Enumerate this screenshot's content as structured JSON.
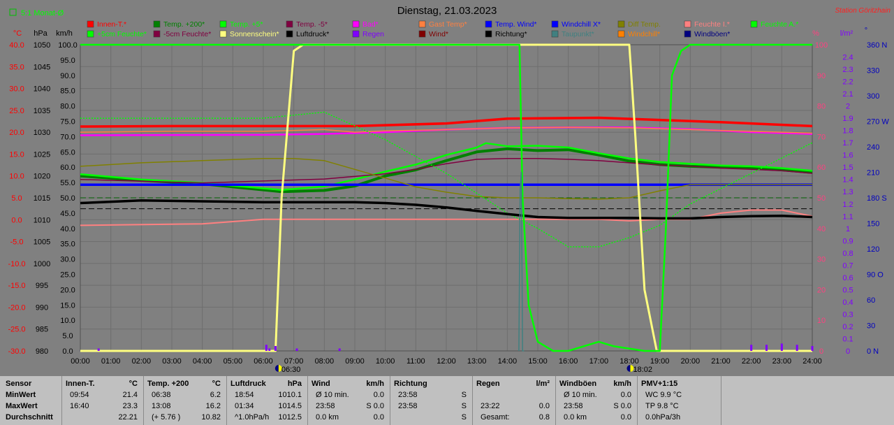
{
  "header": {
    "title": "Dienstag, 21.03.2023",
    "station": "Station Göritzhain",
    "toggle": "5:1 Monat-Ø"
  },
  "axes": {
    "temp_unit": "°C",
    "pressure_unit": "hPa",
    "wind_unit": "km/h",
    "humidity_unit": "%",
    "rain_unit": "l/m²",
    "direction_unit": "°",
    "temp_ticks": [
      "40.0",
      "35.0",
      "30.0",
      "25.0",
      "20.0",
      "15.0",
      "10.0",
      "5.0",
      "0.0",
      "-5.0",
      "-10.0",
      "-15.0",
      "-20.0",
      "-25.0",
      "-30.0"
    ],
    "pressure_ticks": [
      "1050",
      "1045",
      "1040",
      "1035",
      "1030",
      "1025",
      "1020",
      "1015",
      "1010",
      "1005",
      "1000",
      "995",
      "990",
      "985",
      "980"
    ],
    "wind_ticks": [
      "100.0",
      "95.0",
      "90.0",
      "85.0",
      "80.0",
      "75.0",
      "70.0",
      "65.0",
      "60.0",
      "55.0",
      "50.0",
      "45.0",
      "40.0",
      "35.0",
      "30.0",
      "25.0",
      "20.0",
      "15.0",
      "10.0",
      "5.0",
      "0.0"
    ],
    "humidity_ticks": [
      "100",
      "90",
      "80",
      "70",
      "60",
      "50",
      "40",
      "30",
      "20",
      "10",
      "0"
    ],
    "rain_ticks": [
      "2.4",
      "2.3",
      "2.2",
      "2.1",
      "2",
      "1.9",
      "1.8",
      "1.7",
      "1.6",
      "1.5",
      "1.4",
      "1.3",
      "1.2",
      "1.1",
      "1",
      "0.9",
      "0.8",
      "0.7",
      "0.6",
      "0.5",
      "0.4",
      "0.3",
      "0.2",
      "0.1",
      "0"
    ],
    "direction_ticks": [
      "360 N",
      "330",
      "300",
      "270 W",
      "240",
      "210",
      "180 S",
      "150",
      "120",
      "90 O",
      "60",
      "30",
      "0 N"
    ],
    "time_ticks": [
      "00:00",
      "01:00",
      "02:00",
      "03:00",
      "04:00",
      "05:00",
      "06:00",
      "07:00",
      "08:00",
      "09:00",
      "10:00",
      "11:00",
      "12:00",
      "13:00",
      "14:00",
      "15:00",
      "16:00",
      "17:00",
      "18:00",
      "19:00",
      "20:00",
      "21:00",
      "22:00",
      "23:00",
      "24:00"
    ],
    "sunrise": "06:30",
    "sunset": "18:02"
  },
  "legend": [
    {
      "label": "Innen-T.*",
      "color": "#ff0000"
    },
    {
      "label": "Temp. +200*",
      "color": "#008000"
    },
    {
      "label": "Temp. +5*",
      "color": "#00ff00"
    },
    {
      "label": "Temp. -5*",
      "color": "#800040"
    },
    {
      "label": "Bad*",
      "color": "#ff00ff"
    },
    {
      "label": "Gast Temp*",
      "color": "#ff8040"
    },
    {
      "label": "Temp. Wind*",
      "color": "#0000ff"
    },
    {
      "label": "Windchill X*",
      "color": "#0000ff"
    },
    {
      "label": "Diff Temp.",
      "color": "#808000"
    },
    {
      "label": "Feuchte I.*",
      "color": "#ff8080"
    },
    {
      "label": "Feuchte A.*",
      "color": "#00ff00"
    },
    {
      "label": "+5cm Feuchte*",
      "color": "#00ff00"
    },
    {
      "label": "-5cm Feuchte*",
      "color": "#800040"
    },
    {
      "label": "Sonnenschein*",
      "color": "#ffff80"
    },
    {
      "label": "Luftdruck*",
      "color": "#000000"
    },
    {
      "label": "Regen",
      "color": "#8000ff"
    },
    {
      "label": "Wind*",
      "color": "#800000"
    },
    {
      "label": "Richtung*",
      "color": "#000000"
    },
    {
      "label": "Taupunkt*",
      "color": "#408080"
    },
    {
      "label": "Windchill*",
      "color": "#ff8000"
    },
    {
      "label": "Windböen*",
      "color": "#000080"
    }
  ],
  "chart_data": {
    "type": "line",
    "title": "Dienstag, 21.03.2023",
    "xlabel": "",
    "ylabel": "°C",
    "xlim": [
      0,
      24
    ],
    "ylim": [
      -30,
      40
    ],
    "grid": true,
    "legend_position": "top",
    "series": [
      {
        "name": "Innen-T.*",
        "color": "#ff0000",
        "axis": "temp",
        "x": [
          0,
          3,
          6,
          9,
          12,
          14,
          17,
          19,
          21,
          24
        ],
        "y": [
          21.3,
          21.4,
          21.4,
          21.4,
          22.0,
          23.1,
          23.3,
          22.8,
          22.3,
          21.4
        ]
      },
      {
        "name": "Temp. +200*",
        "color": "#008000",
        "axis": "temp",
        "x": [
          0,
          2,
          4,
          6.6,
          8,
          9,
          10,
          11,
          12,
          13,
          14,
          15,
          16,
          17,
          18,
          19,
          20,
          21,
          22,
          23,
          24
        ],
        "y": [
          10.0,
          9.0,
          8.2,
          6.4,
          6.7,
          7.7,
          10.0,
          11.4,
          13.5,
          15.5,
          16.2,
          15.8,
          16.0,
          14.8,
          13.4,
          12.6,
          12.2,
          12.0,
          11.8,
          11.4,
          10.8
        ]
      },
      {
        "name": "Temp. +5*",
        "color": "#00ff00",
        "axis": "temp",
        "x": [
          0,
          2,
          4,
          6.6,
          8,
          9,
          10,
          11,
          12,
          13,
          13.3,
          14,
          15,
          16,
          17,
          18,
          19,
          20,
          21,
          22,
          23,
          24
        ],
        "y": [
          10.4,
          9.2,
          8.4,
          6.8,
          7.6,
          9.2,
          11.0,
          12.6,
          14.8,
          16.5,
          17.5,
          16.8,
          16.9,
          16.5,
          15.2,
          14.0,
          13.2,
          12.8,
          12.4,
          12.2,
          11.8,
          11.2
        ]
      },
      {
        "name": "Temp. -5*",
        "color": "#800040",
        "axis": "temp",
        "x": [
          0,
          4,
          8,
          10,
          11,
          12,
          13,
          14,
          15,
          16,
          17,
          18,
          19,
          20,
          21,
          22,
          23,
          24
        ],
        "y": [
          9.2,
          8.4,
          9.3,
          10.5,
          11.5,
          12.8,
          13.8,
          14.0,
          14.0,
          13.8,
          13.5,
          13.0,
          12.5,
          12.2,
          11.8,
          11.5,
          11.2,
          10.6
        ]
      },
      {
        "name": "Bad*",
        "color": "#ff00ff",
        "axis": "temp",
        "x": [
          0,
          6,
          8,
          10,
          12,
          14,
          16,
          18,
          20,
          22,
          24
        ],
        "y": [
          19.3,
          19.4,
          19.6,
          20.0,
          20.6,
          21.0,
          21.1,
          21.1,
          20.7,
          20.0,
          19.6
        ]
      },
      {
        "name": "Gast Temp*",
        "color": "#ff8040",
        "axis": "temp",
        "x": [
          0,
          3,
          6,
          8,
          9,
          10,
          12,
          14,
          16,
          18,
          20,
          22,
          24
        ],
        "y": [
          20.0,
          20.2,
          20.2,
          20.6,
          20.0,
          20.3,
          20.6,
          21.0,
          21.1,
          21.0,
          20.6,
          20.2,
          19.8
        ]
      },
      {
        "name": "Temp. Wind*",
        "color": "#0000ff",
        "axis": "temp",
        "x": [
          0,
          24
        ],
        "y": [
          8.0,
          8.0
        ]
      },
      {
        "name": "Windchill X*",
        "color": "#0000ff",
        "axis": "temp",
        "x": [
          0,
          24
        ],
        "y": [
          8.0,
          8.0
        ]
      },
      {
        "name": "Diff Temp.",
        "color": "#808000",
        "axis": "temp",
        "x": [
          0,
          2,
          4,
          6,
          7,
          8,
          9,
          10,
          11,
          12,
          13,
          14,
          15,
          16,
          17,
          18,
          19,
          20,
          21,
          22,
          24
        ],
        "y": [
          12.2,
          13.0,
          13.5,
          14.0,
          14.0,
          13.5,
          11.5,
          9.5,
          7.5,
          6.3,
          5.3,
          5.0,
          5.0,
          4.8,
          4.7,
          5.0,
          6.6,
          8.0,
          8.0,
          8.0,
          8.0
        ]
      },
      {
        "name": "Feuchte I.*",
        "color": "#ff8080",
        "axis": "humidity",
        "x": [
          0,
          4,
          6,
          8,
          10,
          12,
          14,
          16,
          17,
          18,
          19,
          20,
          21,
          22,
          23,
          24
        ],
        "y": [
          41,
          41.5,
          43,
          43,
          43,
          43,
          43,
          43,
          43,
          42.5,
          43,
          43,
          45,
          46,
          46,
          44
        ]
      },
      {
        "name": "Feuchte A.*",
        "color": "#00ff00",
        "axis": "humidity",
        "x": [
          0,
          6,
          8,
          10,
          12,
          14,
          15,
          16,
          17,
          18,
          19,
          20,
          21,
          22,
          23,
          24
        ],
        "y": [
          76,
          76,
          78,
          69,
          58,
          45,
          40,
          34,
          34,
          37,
          41,
          48,
          53,
          58,
          63,
          68
        ]
      },
      {
        "name": "Luftdruck*",
        "color": "#000000",
        "axis": "pressure",
        "x": [
          0,
          2,
          4,
          6,
          8,
          9,
          10,
          11,
          12,
          13,
          14,
          15,
          16,
          17,
          18,
          19,
          20,
          21,
          22,
          23,
          24
        ],
        "y": [
          1013.8,
          1014.4,
          1014.2,
          1014.0,
          1014.0,
          1014.0,
          1013.8,
          1013.4,
          1012.8,
          1012.0,
          1011.3,
          1010.6,
          1010.4,
          1010.4,
          1010.4,
          1010.3,
          1010.3,
          1010.6,
          1010.8,
          1010.9,
          1010.6
        ]
      },
      {
        "name": "Sonnenschein*",
        "color": "#ffff80",
        "axis": "percent",
        "x": [
          0,
          6.4,
          6.6,
          7.0,
          7.3,
          18.0,
          18.2,
          18.5,
          18.9,
          24
        ],
        "y": [
          0,
          0,
          50,
          98,
          100,
          100,
          70,
          20,
          0,
          0
        ]
      },
      {
        "name": "Windböen*",
        "color": "#00ff00",
        "axis": "wind",
        "x": [
          0,
          14.4,
          14.5,
          14.7,
          15.0,
          15.5,
          16,
          16.5,
          17,
          17.5,
          18.5,
          19,
          19.2,
          19.4,
          19.7,
          20,
          24
        ],
        "y": [
          100,
          100,
          50,
          15,
          3,
          0,
          0,
          1.5,
          3,
          1.5,
          0,
          0,
          40,
          90,
          98,
          100,
          100
        ]
      },
      {
        "name": "Regen",
        "color": "#8000ff",
        "axis": "rain",
        "x": [
          0.6,
          6.1,
          6.2,
          6.4,
          7.1,
          8.5,
          22,
          22.5,
          23,
          23.5,
          24
        ],
        "y": [
          0.02,
          0.05,
          0.02,
          0.04,
          0.02,
          0.02,
          0.05,
          0.05,
          0.06,
          0.05,
          0.04
        ]
      },
      {
        "name": "Richtung*",
        "color": "#408080",
        "axis": "direction",
        "x": [
          14.38,
          14.42,
          14.46,
          14.5,
          14.55
        ],
        "y": [
          0,
          190,
          210,
          0,
          0
        ]
      }
    ]
  },
  "stats": {
    "sensor_label": "Sensor",
    "min_label": "MinWert",
    "max_label": "MaxWert",
    "avg_label": "Durchschnitt",
    "blocks": [
      {
        "title": "Innen-T.",
        "unit": "°C",
        "rows": [
          [
            "09:54",
            "21.4"
          ],
          [
            "16:40",
            "23.3"
          ],
          [
            "",
            "22.21"
          ]
        ]
      },
      {
        "title": "Temp. +200",
        "unit": "°C",
        "rows": [
          [
            "06:38",
            "6.2"
          ],
          [
            "13:08",
            "16.2"
          ],
          [
            "(+ 5.76 )",
            "10.82"
          ]
        ]
      },
      {
        "title": "Luftdruck",
        "unit": "hPa",
        "rows": [
          [
            "18:54",
            "1010.1"
          ],
          [
            "01:34",
            "1014.5"
          ],
          [
            "^1.0hPa/h",
            "1012.5"
          ]
        ]
      },
      {
        "title": "Wind",
        "unit": "km/h",
        "rows": [
          [
            "Ø 10 min.",
            "0.0"
          ],
          [
            "23:58",
            "S 0.0"
          ],
          [
            "0.0 km",
            "0.0"
          ]
        ]
      },
      {
        "title": "Richtung",
        "unit": "",
        "rows": [
          [
            "23:58",
            "S"
          ],
          [
            "23:58",
            "S"
          ],
          [
            "",
            "S"
          ]
        ]
      },
      {
        "title": "Regen",
        "unit": "l/m²",
        "rows": [
          [
            "",
            ""
          ],
          [
            "23:22",
            "0.0"
          ],
          [
            "Gesamt:",
            "0.8"
          ]
        ]
      },
      {
        "title": "Windböen",
        "unit": "km/h",
        "rows": [
          [
            "Ø 10 min.",
            "0.0"
          ],
          [
            "23:58",
            "S 0.0"
          ],
          [
            "0.0 km",
            "0.0"
          ]
        ]
      },
      {
        "title": "PMV+1:15",
        "unit": "",
        "rows": [
          [
            "WC 9.9 °C",
            ""
          ],
          [
            "TP 9.8 °C",
            ""
          ],
          [
            "0.0hPa/3h",
            ""
          ]
        ]
      }
    ]
  }
}
